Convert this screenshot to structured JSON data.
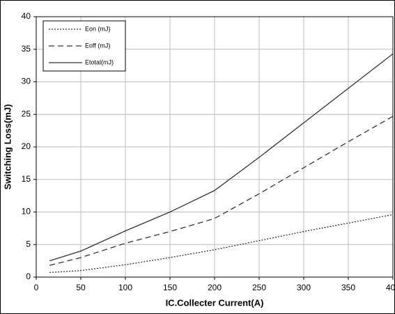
{
  "chart_data": {
    "type": "line",
    "xlabel": "IC.Collecter Current(A)",
    "ylabel": "Switching Loss(mJ)",
    "x": [
      15,
      50,
      100,
      150,
      200,
      250,
      300,
      350,
      400
    ],
    "series": [
      {
        "name": "Eon (mJ)",
        "color": "#333333",
        "dash": "dotted",
        "values": [
          0.7,
          1.0,
          1.9,
          3.0,
          4.2,
          5.6,
          7.0,
          8.3,
          9.6
        ]
      },
      {
        "name": "Eoff (mJ)",
        "color": "#333333",
        "dash": "dashed",
        "values": [
          1.8,
          3.0,
          5.2,
          7.0,
          9.0,
          12.8,
          16.8,
          20.8,
          24.7
        ]
      },
      {
        "name": "Etotal(mJ)",
        "color": "#333333",
        "dash": "solid",
        "values": [
          2.5,
          4.0,
          7.1,
          10.0,
          13.3,
          18.4,
          23.7,
          29.0,
          34.3
        ]
      }
    ],
    "xlim": [
      0,
      400
    ],
    "xticks": [
      0,
      50,
      100,
      150,
      200,
      250,
      300,
      350,
      400
    ],
    "ylim": [
      0,
      40
    ],
    "yticks": [
      0,
      5,
      10,
      15,
      20,
      25,
      30,
      35,
      40
    ],
    "grid": true,
    "legend": "upper left"
  }
}
